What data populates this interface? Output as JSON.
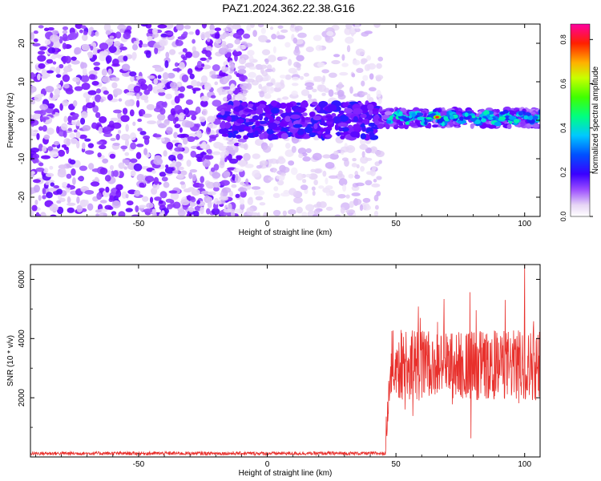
{
  "title": "PAZ1.2024.362.22.38.G16",
  "colors": {
    "snr_line": "#e8302c",
    "axis": "#000000",
    "background": "#ffffff"
  },
  "chart_data": [
    {
      "type": "heatmap",
      "xlabel": "Height of straight line (km)",
      "ylabel": "Frequency (Hz)",
      "xlim": [
        -92,
        106
      ],
      "ylim": [
        -25,
        25
      ],
      "x_ticks": [
        "-50",
        "0",
        "50",
        "100"
      ],
      "x_tick_values": [
        -50,
        0,
        50,
        100
      ],
      "y_ticks": [
        "20",
        "10",
        "0",
        "-10",
        "-20"
      ],
      "y_tick_values": [
        20,
        10,
        0,
        -10,
        -20
      ],
      "colorbar": {
        "label": "Normalized spectral amplitude",
        "range": [
          0,
          0.87
        ],
        "ticks": [
          "0.0",
          "0.2",
          "0.4",
          "0.6",
          "0.8"
        ],
        "tick_values": [
          0.0,
          0.2,
          0.4,
          0.6,
          0.8
        ],
        "colormap": "rainbow (white-purple-blue-cyan-green-yellow-red-magenta)"
      },
      "description_regions": [
        {
          "x_range": [
            -92,
            -18
          ],
          "freq_range": [
            -25,
            25
          ],
          "amplitude": 0.05
        },
        {
          "x_range": [
            -18,
            44
          ],
          "freq_range": [
            -5,
            5
          ],
          "amplitude": 0.12
        },
        {
          "x_range": [
            44,
            106
          ],
          "freq_range": [
            -2,
            3
          ],
          "amplitude": 0.35
        }
      ]
    },
    {
      "type": "line",
      "xlabel": "Height of straight line (km)",
      "ylabel": "SNR (10 * v/v)",
      "xlim": [
        -92,
        106
      ],
      "ylim": [
        0,
        6500
      ],
      "x_ticks": [
        "-50",
        "0",
        "50",
        "100"
      ],
      "x_tick_values": [
        -50,
        0,
        50,
        100
      ],
      "y_ticks": [
        "2000",
        "4000",
        "6000"
      ],
      "y_tick_values": [
        2000,
        4000,
        6000
      ],
      "series": [
        {
          "segments": [
            {
              "x_range": [
                -92,
                46
              ],
              "mean": 120,
              "spread": 60
            },
            {
              "x_range": [
                46,
                48
              ],
              "mean": 1500,
              "spread": 1200
            },
            {
              "x_range": [
                48,
                106
              ],
              "mean": 3100,
              "spread": 1200
            }
          ],
          "peak": {
            "x": 100,
            "y": 6500
          }
        }
      ]
    }
  ]
}
